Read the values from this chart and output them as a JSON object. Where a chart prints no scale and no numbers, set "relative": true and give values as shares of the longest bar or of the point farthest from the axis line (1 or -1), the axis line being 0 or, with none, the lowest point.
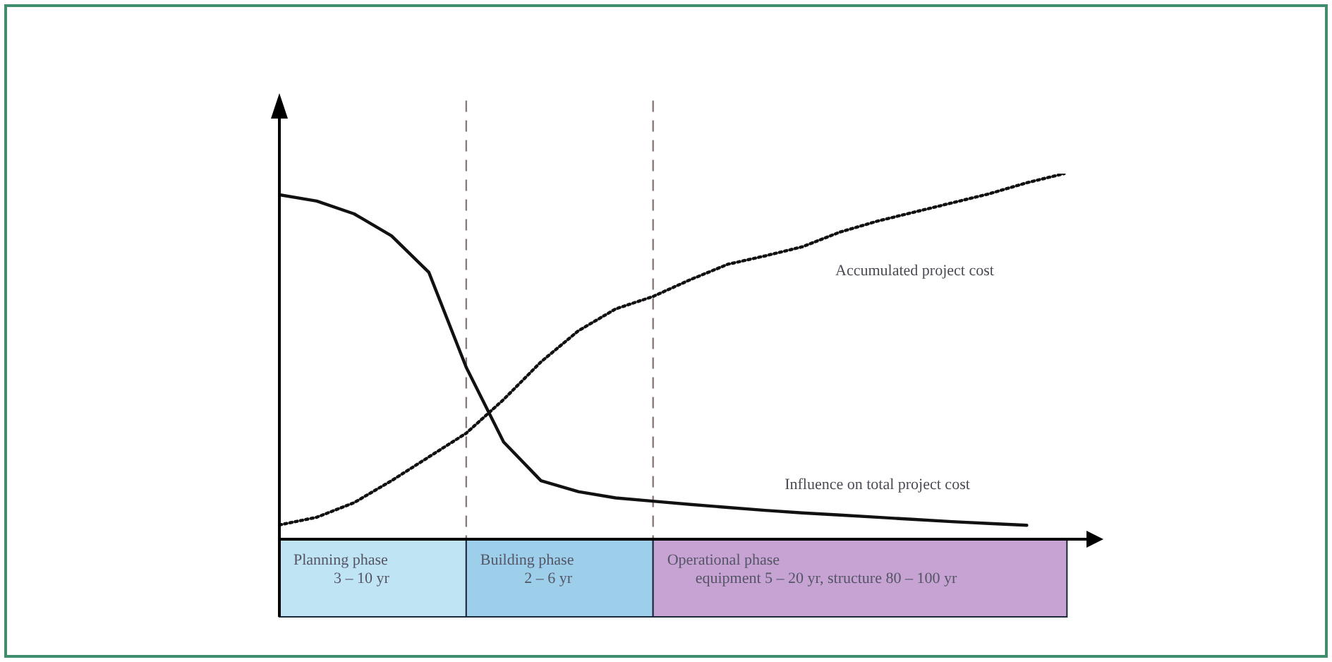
{
  "chart_data": {
    "type": "line",
    "relative": true,
    "marker": "none",
    "categories": [
      null,
      null,
      null,
      null,
      null,
      null,
      null,
      null,
      null,
      null,
      null,
      null,
      null,
      null,
      null,
      null,
      null,
      null,
      null,
      null,
      null,
      null
    ],
    "series": [
      {
        "name": "Influence on total project cost",
        "color": "#111111",
        "line_style": "solid",
        "values": [
          0.942,
          0.925,
          0.89,
          0.83,
          0.73,
          0.47,
          0.266,
          0.16,
          0.13,
          0.113,
          0.104,
          0.095,
          0.087,
          0.079,
          0.072,
          0.066,
          0.06,
          0.054,
          0.048,
          0.043,
          0.038,
          null
        ]
      },
      {
        "name": "Accumulated project cost",
        "color": "#111111",
        "line_style": "dotted",
        "values": [
          0.039,
          0.06,
          0.1,
          0.16,
          0.225,
          0.29,
          0.382,
          0.485,
          0.57,
          0.63,
          0.664,
          0.71,
          0.752,
          0.775,
          0.8,
          0.84,
          0.87,
          0.895,
          0.92,
          0.945,
          0.975,
          1.0
        ]
      }
    ],
    "annotations": [
      "Planning phase\n3 – 10 yr",
      "Building phase\n2 – 6 yr",
      "Operational phase\nequipment 5 – 20 yr, structure 80 – 100 yr"
    ]
  }
}
